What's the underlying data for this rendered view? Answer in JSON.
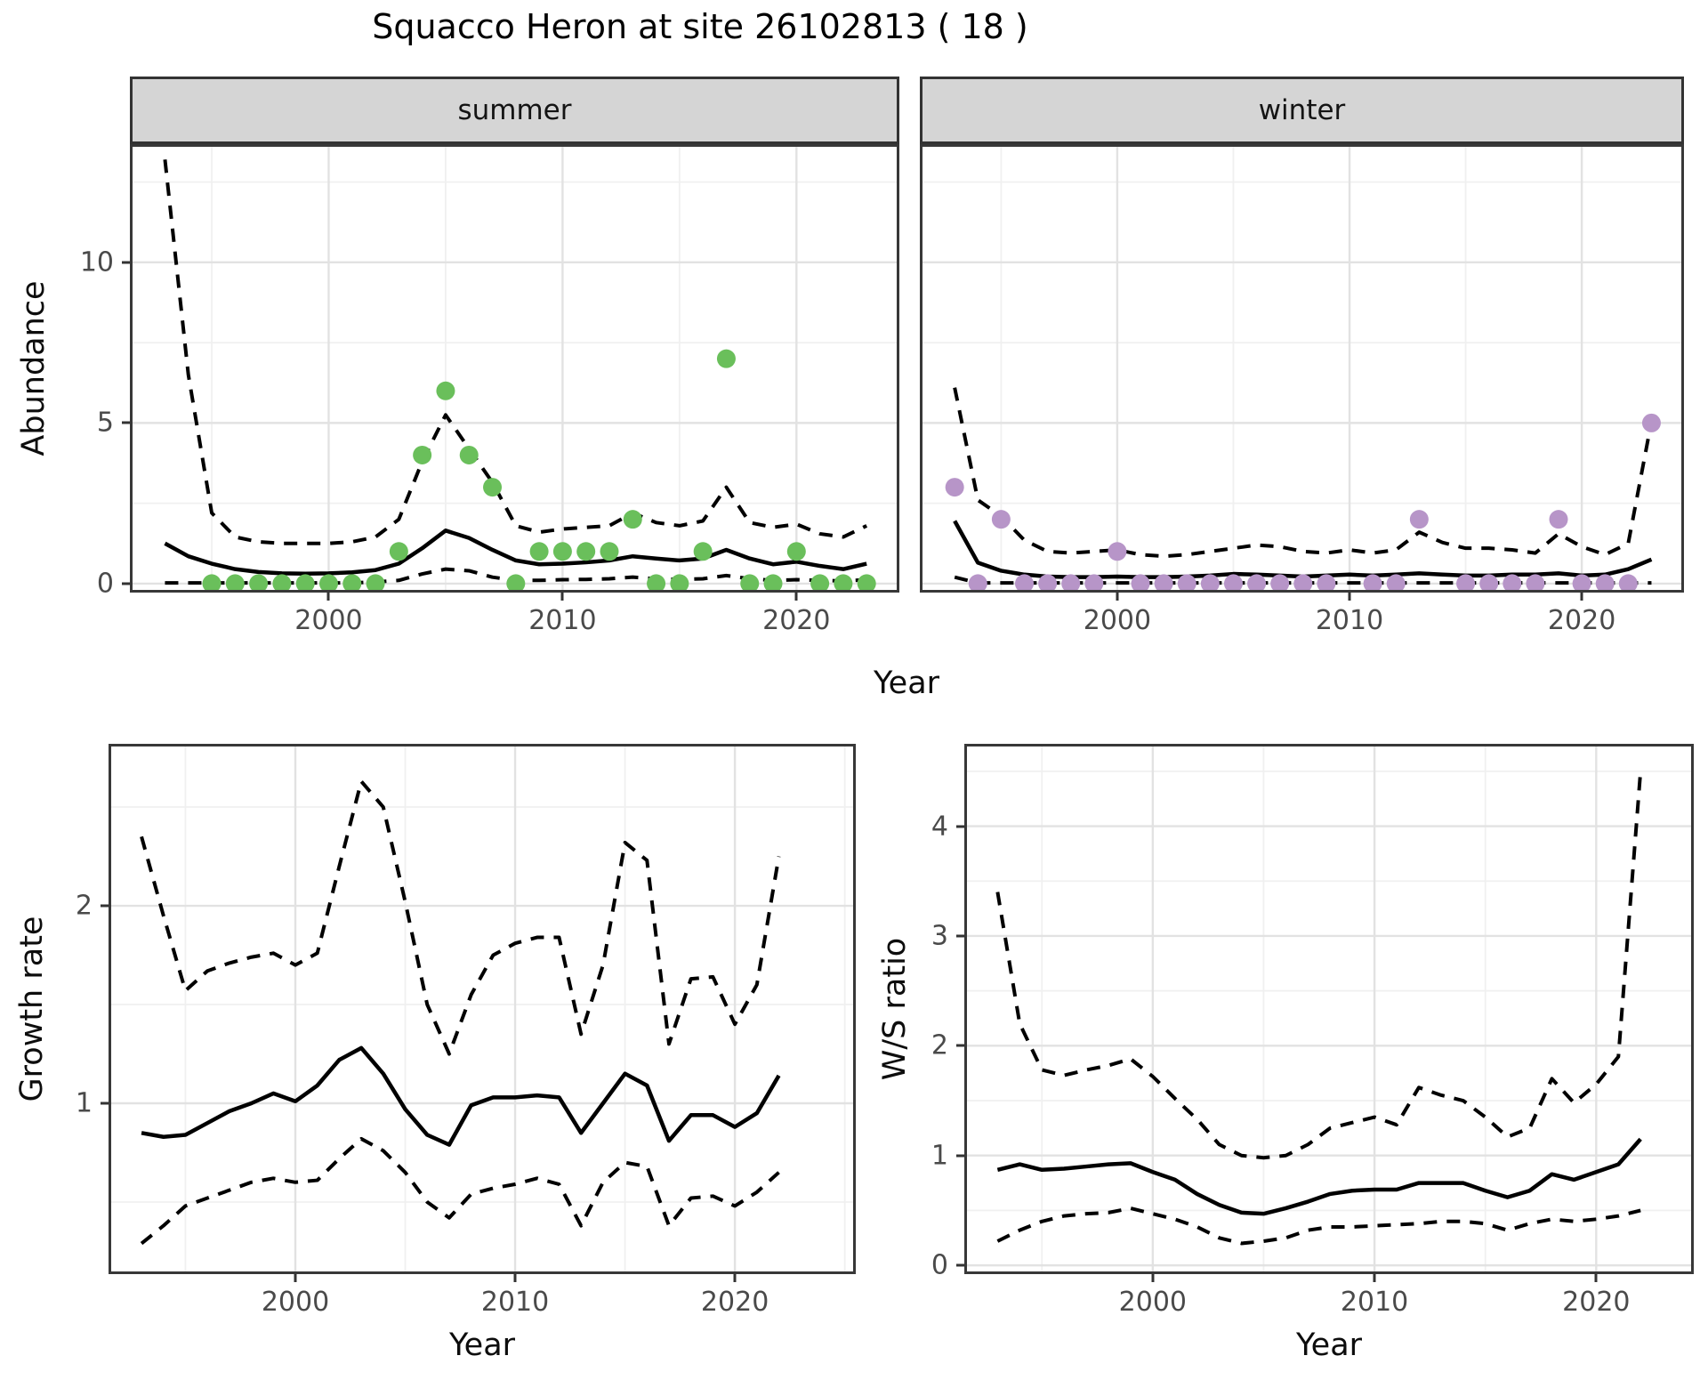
{
  "title": "Squacco Heron at site 26102813 ( 18 )",
  "chart_data": [
    {
      "type": "scatter",
      "facet": "summer",
      "xlabel": "Year",
      "ylabel": "Abundance",
      "xlim": [
        1991.5,
        2024.4
      ],
      "ylim": [
        -0.28,
        13.68
      ],
      "xticks": [
        2000,
        2010,
        2020
      ],
      "yticks": [
        0,
        5,
        10
      ],
      "xticks_minor": [
        1995,
        2005,
        2015
      ],
      "yticks_minor": [
        2.5,
        7.5,
        12.5
      ],
      "show_ytick_labels": true,
      "grid": true,
      "point_color": "#6abf5b",
      "points": {
        "years": [
          1995,
          1996,
          1997,
          1998,
          1999,
          2000,
          2001,
          2002,
          2003,
          2004,
          2005,
          2006,
          2007,
          2008,
          2009,
          2010,
          2011,
          2012,
          2013,
          2014,
          2015,
          2016,
          2017,
          2018,
          2019,
          2020,
          2021,
          2022,
          2023
        ],
        "values": [
          0,
          0,
          0,
          0,
          0,
          0,
          0,
          0,
          1,
          4,
          6,
          4,
          3,
          0,
          1,
          1,
          1,
          1,
          2,
          0,
          0,
          1,
          7,
          0,
          0,
          1,
          0,
          0,
          0
        ]
      },
      "series": [
        {
          "name": "fit_median",
          "style": "solid",
          "years": [
            1993,
            1994,
            1995,
            1996,
            1997,
            1998,
            1999,
            2000,
            2001,
            2002,
            2003,
            2004,
            2005,
            2006,
            2007,
            2008,
            2009,
            2010,
            2011,
            2012,
            2013,
            2014,
            2015,
            2016,
            2017,
            2018,
            2019,
            2020,
            2021,
            2022,
            2023
          ],
          "values": [
            1.25,
            0.85,
            0.62,
            0.45,
            0.36,
            0.32,
            0.31,
            0.32,
            0.35,
            0.42,
            0.62,
            1.1,
            1.65,
            1.42,
            1.05,
            0.72,
            0.6,
            0.62,
            0.66,
            0.72,
            0.85,
            0.78,
            0.72,
            0.78,
            1.05,
            0.78,
            0.6,
            0.68,
            0.55,
            0.45,
            0.62
          ]
        },
        {
          "name": "ci_upper",
          "style": "dashed",
          "years": [
            1993,
            1994,
            1995,
            1996,
            1997,
            1998,
            1999,
            2000,
            2001,
            2002,
            2003,
            2004,
            2005,
            2006,
            2007,
            2008,
            2009,
            2010,
            2011,
            2012,
            2013,
            2014,
            2015,
            2016,
            2017,
            2018,
            2019,
            2020,
            2021,
            2022,
            2023
          ],
          "values": [
            13.2,
            6.5,
            2.2,
            1.45,
            1.3,
            1.25,
            1.25,
            1.25,
            1.3,
            1.45,
            2.0,
            3.8,
            5.25,
            4.2,
            3.15,
            1.8,
            1.6,
            1.7,
            1.75,
            1.8,
            2.2,
            1.9,
            1.8,
            1.95,
            3.0,
            1.9,
            1.75,
            1.85,
            1.55,
            1.45,
            1.8
          ]
        },
        {
          "name": "ci_lower",
          "style": "dashed",
          "years": [
            1993,
            1994,
            1995,
            1996,
            1997,
            1998,
            1999,
            2000,
            2001,
            2002,
            2003,
            2004,
            2005,
            2006,
            2007,
            2008,
            2009,
            2010,
            2011,
            2012,
            2013,
            2014,
            2015,
            2016,
            2017,
            2018,
            2019,
            2020,
            2021,
            2022,
            2023
          ],
          "values": [
            0.02,
            0.02,
            0.02,
            0.02,
            0.02,
            0.02,
            0.02,
            0.02,
            0.02,
            0.05,
            0.1,
            0.3,
            0.45,
            0.4,
            0.2,
            0.1,
            0.1,
            0.12,
            0.13,
            0.15,
            0.2,
            0.15,
            0.13,
            0.15,
            0.25,
            0.15,
            0.1,
            0.12,
            0.1,
            0.08,
            0.12
          ]
        }
      ]
    },
    {
      "type": "scatter",
      "facet": "winter",
      "xlabel": "Year",
      "ylabel": "Abundance",
      "xlim": [
        1991.5,
        2024.4
      ],
      "ylim": [
        -0.28,
        13.68
      ],
      "xticks": [
        2000,
        2010,
        2020
      ],
      "yticks": [
        0,
        5,
        10
      ],
      "xticks_minor": [
        1995,
        2005,
        2015
      ],
      "yticks_minor": [
        2.5,
        7.5,
        12.5
      ],
      "show_ytick_labels": false,
      "grid": true,
      "point_color": "#b795c8",
      "points": {
        "years": [
          1993,
          1994,
          1995,
          1996,
          1997,
          1998,
          1999,
          2000,
          2001,
          2002,
          2003,
          2004,
          2005,
          2006,
          2007,
          2008,
          2009,
          2011,
          2012,
          2013,
          2015,
          2016,
          2017,
          2018,
          2019,
          2020,
          2021,
          2022,
          2023
        ],
        "values": [
          3,
          0,
          2,
          0,
          0,
          0,
          0,
          1,
          0,
          0,
          0,
          0,
          0,
          0,
          0,
          0,
          0,
          0,
          0,
          2,
          0,
          0,
          0,
          0,
          2,
          0,
          0,
          0,
          5
        ]
      },
      "series": [
        {
          "name": "fit_median",
          "style": "solid",
          "years": [
            1993,
            1994,
            1995,
            1996,
            1997,
            1998,
            1999,
            2000,
            2001,
            2002,
            2003,
            2004,
            2005,
            2006,
            2007,
            2008,
            2009,
            2010,
            2011,
            2012,
            2013,
            2014,
            2015,
            2016,
            2017,
            2018,
            2019,
            2020,
            2021,
            2022,
            2023
          ],
          "values": [
            1.95,
            0.65,
            0.4,
            0.28,
            0.22,
            0.2,
            0.2,
            0.22,
            0.2,
            0.2,
            0.22,
            0.25,
            0.3,
            0.28,
            0.25,
            0.22,
            0.25,
            0.28,
            0.25,
            0.28,
            0.32,
            0.28,
            0.25,
            0.25,
            0.28,
            0.28,
            0.32,
            0.25,
            0.28,
            0.45,
            0.75
          ]
        },
        {
          "name": "ci_upper",
          "style": "dashed",
          "years": [
            1993,
            1994,
            1995,
            1996,
            1997,
            1998,
            1999,
            2000,
            2001,
            2002,
            2003,
            2004,
            2005,
            2006,
            2007,
            2008,
            2009,
            2010,
            2011,
            2012,
            2013,
            2014,
            2015,
            2016,
            2017,
            2018,
            2019,
            2020,
            2021,
            2022,
            2023
          ],
          "values": [
            6.1,
            2.6,
            2.1,
            1.35,
            1.0,
            0.95,
            1.0,
            1.05,
            0.9,
            0.85,
            0.9,
            1.0,
            1.1,
            1.2,
            1.15,
            1.0,
            0.95,
            1.05,
            0.95,
            1.05,
            1.6,
            1.28,
            1.1,
            1.1,
            1.05,
            0.95,
            1.55,
            1.15,
            0.9,
            1.25,
            5.05
          ]
        },
        {
          "name": "ci_lower",
          "style": "dashed",
          "years": [
            1993,
            1994,
            1995,
            1996,
            1997,
            1998,
            1999,
            2000,
            2001,
            2002,
            2003,
            2004,
            2005,
            2006,
            2007,
            2008,
            2009,
            2010,
            2011,
            2012,
            2013,
            2014,
            2015,
            2016,
            2017,
            2018,
            2019,
            2020,
            2021,
            2022,
            2023
          ],
          "values": [
            0.2,
            0.02,
            0.02,
            0.02,
            0.02,
            0.02,
            0.02,
            0.02,
            0.02,
            0.02,
            0.02,
            0.02,
            0.02,
            0.02,
            0.02,
            0.02,
            0.02,
            0.02,
            0.02,
            0.02,
            0.02,
            0.02,
            0.02,
            0.02,
            0.02,
            0.02,
            0.02,
            0.02,
            0.02,
            0.02,
            0.02
          ]
        }
      ]
    },
    {
      "type": "line",
      "facet": "",
      "xlabel": "Year",
      "ylabel": "Growth rate",
      "xlim": [
        1991.5,
        2025.5
      ],
      "ylim": [
        0.135,
        2.82
      ],
      "xticks": [
        2000,
        2010,
        2020
      ],
      "yticks": [
        1,
        2
      ],
      "xticks_minor": [
        1995,
        2005,
        2015,
        2025
      ],
      "yticks_minor": [
        0.5,
        1.5,
        2.5
      ],
      "show_ytick_labels": true,
      "grid": true,
      "series": [
        {
          "name": "fit_median",
          "style": "solid",
          "years": [
            1993,
            1994,
            1995,
            1996,
            1997,
            1998,
            1999,
            2000,
            2001,
            2002,
            2003,
            2004,
            2005,
            2006,
            2007,
            2008,
            2009,
            2010,
            2011,
            2012,
            2013,
            2014,
            2015,
            2016,
            2017,
            2018,
            2019,
            2020,
            2021,
            2022
          ],
          "values": [
            0.85,
            0.83,
            0.84,
            0.9,
            0.96,
            1.0,
            1.05,
            1.01,
            1.09,
            1.22,
            1.28,
            1.15,
            0.97,
            0.84,
            0.79,
            0.99,
            1.03,
            1.03,
            1.04,
            1.03,
            0.85,
            1.0,
            1.15,
            1.09,
            0.81,
            0.94,
            0.94,
            0.88,
            0.95,
            1.14
          ]
        },
        {
          "name": "ci_upper",
          "style": "dashed",
          "years": [
            1993,
            1994,
            1995,
            1996,
            1997,
            1998,
            1999,
            2000,
            2001,
            2002,
            2003,
            2004,
            2005,
            2006,
            2007,
            2008,
            2009,
            2010,
            2011,
            2012,
            2013,
            2014,
            2015,
            2016,
            2017,
            2018,
            2019,
            2020,
            2021,
            2022
          ],
          "values": [
            2.35,
            1.95,
            1.57,
            1.67,
            1.71,
            1.74,
            1.76,
            1.7,
            1.76,
            2.2,
            2.63,
            2.5,
            2.02,
            1.5,
            1.25,
            1.55,
            1.75,
            1.81,
            1.84,
            1.84,
            1.35,
            1.7,
            2.32,
            2.23,
            1.3,
            1.63,
            1.64,
            1.4,
            1.6,
            2.25
          ]
        },
        {
          "name": "ci_lower",
          "style": "dashed",
          "years": [
            1993,
            1994,
            1995,
            1996,
            1997,
            1998,
            1999,
            2000,
            2001,
            2002,
            2003,
            2004,
            2005,
            2006,
            2007,
            2008,
            2009,
            2010,
            2011,
            2012,
            2013,
            2014,
            2015,
            2016,
            2017,
            2018,
            2019,
            2020,
            2021,
            2022
          ],
          "values": [
            0.29,
            0.38,
            0.48,
            0.52,
            0.56,
            0.6,
            0.62,
            0.6,
            0.61,
            0.72,
            0.82,
            0.76,
            0.65,
            0.5,
            0.42,
            0.54,
            0.57,
            0.59,
            0.62,
            0.59,
            0.38,
            0.6,
            0.7,
            0.68,
            0.38,
            0.52,
            0.53,
            0.48,
            0.55,
            0.65
          ]
        }
      ]
    },
    {
      "type": "line",
      "facet": "",
      "xlabel": "Year",
      "ylabel": "W/S ratio",
      "xlim": [
        1991.5,
        2024.4
      ],
      "ylim": [
        -0.08,
        4.75
      ],
      "xticks": [
        2000,
        2010,
        2020
      ],
      "yticks": [
        0,
        1,
        2,
        3,
        4
      ],
      "xticks_minor": [
        1995,
        2005,
        2015
      ],
      "yticks_minor": [
        0.5,
        1.5,
        2.5,
        3.5,
        4.5
      ],
      "show_ytick_labels": true,
      "grid": true,
      "series": [
        {
          "name": "fit_median",
          "style": "solid",
          "years": [
            1993,
            1994,
            1995,
            1996,
            1997,
            1998,
            1999,
            2000,
            2001,
            2002,
            2003,
            2004,
            2005,
            2006,
            2007,
            2008,
            2009,
            2010,
            2011,
            2012,
            2013,
            2014,
            2015,
            2016,
            2017,
            2018,
            2019,
            2020,
            2021,
            2022
          ],
          "values": [
            0.87,
            0.92,
            0.87,
            0.88,
            0.9,
            0.92,
            0.93,
            0.85,
            0.78,
            0.65,
            0.55,
            0.48,
            0.47,
            0.52,
            0.58,
            0.65,
            0.68,
            0.69,
            0.69,
            0.75,
            0.75,
            0.75,
            0.68,
            0.62,
            0.68,
            0.83,
            0.78,
            0.85,
            0.92,
            1.15
          ]
        },
        {
          "name": "ci_upper",
          "style": "dashed",
          "years": [
            1993,
            1994,
            1995,
            1996,
            1997,
            1998,
            1999,
            2000,
            2001,
            2002,
            2003,
            2004,
            2005,
            2006,
            2007,
            2008,
            2009,
            2010,
            2011,
            2012,
            2013,
            2014,
            2015,
            2016,
            2017,
            2018,
            2019,
            2020,
            2021,
            2022
          ],
          "values": [
            3.4,
            2.2,
            1.78,
            1.73,
            1.78,
            1.82,
            1.88,
            1.72,
            1.52,
            1.33,
            1.1,
            1.0,
            0.98,
            1.0,
            1.1,
            1.25,
            1.3,
            1.35,
            1.28,
            1.62,
            1.55,
            1.5,
            1.35,
            1.17,
            1.25,
            1.7,
            1.48,
            1.65,
            1.9,
            4.5
          ]
        },
        {
          "name": "ci_lower",
          "style": "dashed",
          "years": [
            1993,
            1994,
            1995,
            1996,
            1997,
            1998,
            1999,
            2000,
            2001,
            2002,
            2003,
            2004,
            2005,
            2006,
            2007,
            2008,
            2009,
            2010,
            2011,
            2012,
            2013,
            2014,
            2015,
            2016,
            2017,
            2018,
            2019,
            2020,
            2021,
            2022
          ],
          "values": [
            0.22,
            0.32,
            0.4,
            0.45,
            0.47,
            0.48,
            0.52,
            0.47,
            0.42,
            0.35,
            0.25,
            0.2,
            0.22,
            0.25,
            0.32,
            0.35,
            0.35,
            0.36,
            0.37,
            0.38,
            0.4,
            0.4,
            0.38,
            0.32,
            0.38,
            0.42,
            0.4,
            0.42,
            0.45,
            0.5
          ]
        }
      ]
    }
  ]
}
